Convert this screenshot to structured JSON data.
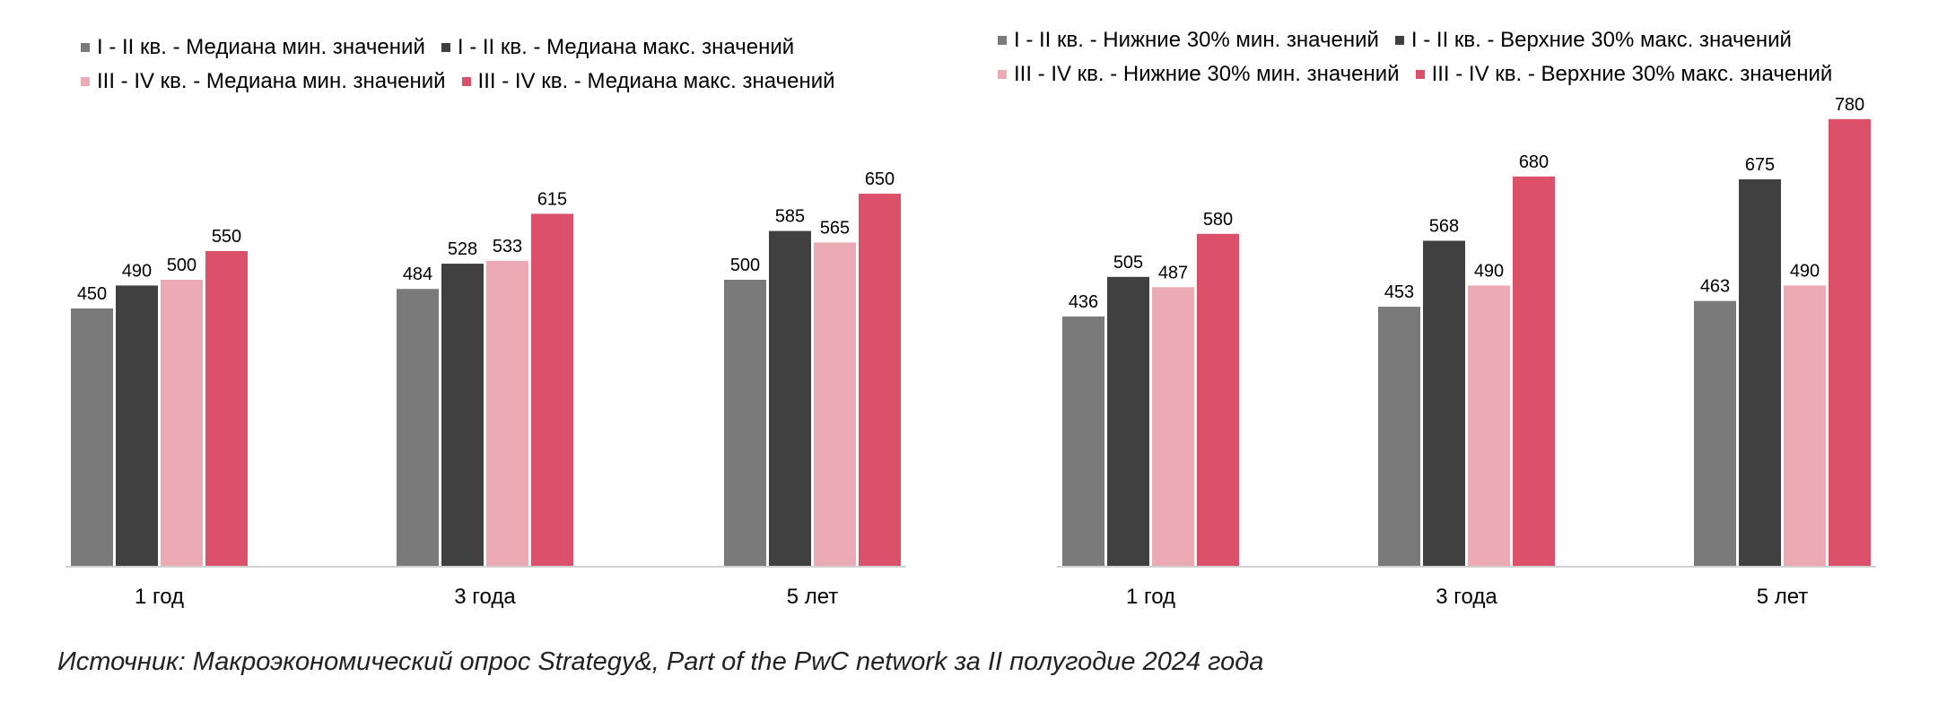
{
  "colors": {
    "dark_gray": "#7a7a7a",
    "black": "#404040",
    "light_pink": "#ecaab4",
    "red": "#db516a"
  },
  "source": "Источник: Макроэкономический опрос Strategy&, Part of the PwC network за II полугодие 2024 года",
  "chart_data": [
    {
      "type": "bar",
      "categories": [
        "1 год",
        "3 года",
        "5 лет"
      ],
      "legend": [
        [
          "I - II кв. - Медиана мин. значений",
          "I - II кв. - Медиана макс. значений"
        ],
        [
          "III - IV кв. - Медиана мин. значений",
          "III - IV кв. - Медиана макс. значений"
        ]
      ],
      "series": [
        {
          "name": "I - II кв. - Медиана мин. значений",
          "color": "#7a7a7a",
          "values": [
            450,
            484,
            500
          ]
        },
        {
          "name": "I - II кв. - Медиана макс. значений",
          "color": "#404040",
          "values": [
            490,
            528,
            585
          ]
        },
        {
          "name": "III - IV кв. - Медиана мин. значений",
          "color": "#ecaab4",
          "values": [
            500,
            533,
            565
          ]
        },
        {
          "name": "III - IV кв. - Медиана макс. значений",
          "color": "#db516a",
          "values": [
            550,
            615,
            650
          ]
        }
      ],
      "ylim": [
        0,
        780
      ],
      "grid": false,
      "legend_position": "top"
    },
    {
      "type": "bar",
      "categories": [
        "1 год",
        "3 года",
        "5 лет"
      ],
      "legend": [
        [
          "I - II кв. - Нижние 30% мин. значений",
          "I - II кв. - Верхние 30% макс. значений"
        ],
        [
          "III - IV кв. - Нижние 30% мин. значений",
          "III - IV кв. - Верхние 30% макс. значений"
        ]
      ],
      "series": [
        {
          "name": "I - II кв. - Нижние 30% мин. значений",
          "color": "#7a7a7a",
          "values": [
            436,
            453,
            463
          ]
        },
        {
          "name": "I - II кв. - Верхние 30% макс. значений",
          "color": "#404040",
          "values": [
            505,
            568,
            675
          ]
        },
        {
          "name": "III - IV кв. - Нижние 30% мин. значений",
          "color": "#ecaab4",
          "values": [
            487,
            490,
            490
          ]
        },
        {
          "name": "III - IV кв. - Верхние 30% макс. значений",
          "color": "#db516a",
          "values": [
            580,
            680,
            780
          ]
        }
      ],
      "ylim": [
        0,
        780
      ],
      "grid": false,
      "legend_position": "top"
    }
  ]
}
